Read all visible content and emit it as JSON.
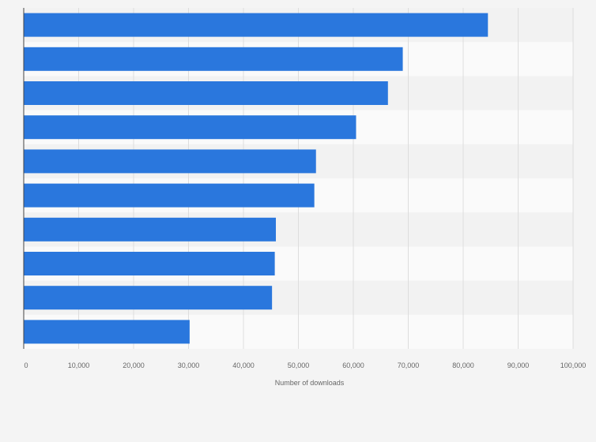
{
  "chart_data": {
    "type": "bar",
    "orientation": "horizontal",
    "categories": [
      "",
      "",
      "",
      "",
      "",
      "",
      "",
      "",
      "",
      ""
    ],
    "series": [
      {
        "values": [
          84500,
          69000,
          66300,
          60500,
          53200,
          52900,
          45900,
          45700,
          45200,
          30200
        ]
      }
    ],
    "title": "",
    "xlabel": "Number of downloads",
    "ylabel": "",
    "xlim": [
      0,
      100000
    ],
    "x_ticks": [
      0,
      10000,
      20000,
      30000,
      40000,
      50000,
      60000,
      70000,
      80000,
      90000,
      100000
    ],
    "x_tick_labels": [
      "0",
      "10,000",
      "20,000",
      "30,000",
      "40,000",
      "50,000",
      "60,000",
      "70,000",
      "80,000",
      "90,000",
      "100,000"
    ],
    "grid": true,
    "legend": "none",
    "colors": {
      "bar": "#2a77dd",
      "band_light": "#fafafa",
      "band_dark": "#f2f2f2",
      "grid": "#dddddd",
      "axis": "#444444",
      "text": "#666666"
    }
  }
}
